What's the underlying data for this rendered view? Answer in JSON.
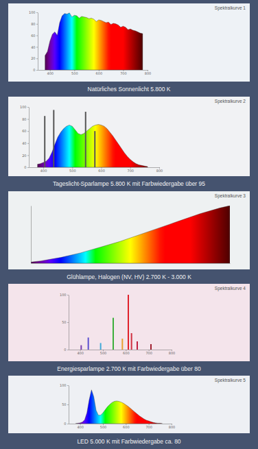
{
  "chart_data": [
    {
      "type": "area",
      "title": "Natürliches Sonnenlicht 5.800 K",
      "subtitle": "Spektralkurve 1",
      "x": [
        380,
        390,
        400,
        410,
        420,
        430,
        440,
        450,
        460,
        470,
        480,
        490,
        500,
        510,
        520,
        530,
        540,
        550,
        560,
        570,
        580,
        590,
        600,
        610,
        620,
        630,
        640,
        650,
        660,
        670,
        680,
        690,
        700,
        710,
        720,
        730,
        740,
        750,
        760,
        770,
        780
      ],
      "values": [
        25,
        32,
        50,
        62,
        66,
        60,
        82,
        94,
        98,
        97,
        99,
        92,
        95,
        94,
        90,
        93,
        92,
        91,
        89,
        90,
        88,
        84,
        87,
        86,
        84,
        82,
        83,
        79,
        81,
        80,
        78,
        74,
        76,
        74,
        70,
        71,
        69,
        68,
        66,
        64,
        63
      ],
      "xlim": [
        350,
        800
      ],
      "ylim": [
        0,
        100
      ],
      "xticks": [
        400,
        500,
        600,
        700,
        800
      ],
      "yticks": [
        0,
        20,
        40,
        60,
        80,
        100
      ]
    },
    {
      "type": "area",
      "title": "Tageslicht-Sparlampe 5.800 K mit Farbwiedergabe über 95",
      "subtitle": "Spektralkurve 2",
      "series": [
        {
          "type": "area",
          "x": [
            380,
            390,
            400,
            410,
            420,
            430,
            440,
            450,
            460,
            470,
            480,
            490,
            500,
            510,
            520,
            530,
            540,
            550,
            560,
            570,
            580,
            590,
            600,
            610,
            620,
            630,
            640,
            650,
            660,
            670,
            680,
            690,
            700,
            710,
            720,
            730,
            740,
            750,
            760
          ],
          "values": [
            5,
            6,
            8,
            10,
            15,
            25,
            38,
            50,
            58,
            64,
            68,
            70,
            68,
            62,
            56,
            54,
            56,
            60,
            64,
            68,
            70,
            71,
            70,
            68,
            64,
            58,
            52,
            45,
            38,
            31,
            24,
            18,
            13,
            9,
            6,
            4,
            3,
            2,
            1
          ]
        },
        {
          "type": "bar",
          "color": "#555555",
          "x": [
            405,
            436,
            546,
            578
          ],
          "values": [
            85,
            95,
            92,
            60
          ]
        }
      ],
      "xlim": [
        350,
        800
      ],
      "ylim": [
        0,
        100
      ],
      "xticks": [
        400,
        500,
        600,
        700,
        800
      ],
      "yticks": [
        0,
        20,
        40,
        60,
        80,
        100
      ]
    },
    {
      "type": "area",
      "title": "Glühlampe, Halogen (NV, HV) 2.700 K - 3.000 K",
      "subtitle": "Spektralkurve 3",
      "x": [
        380,
        400,
        420,
        440,
        460,
        480,
        500,
        520,
        540,
        560,
        580,
        600,
        620,
        640,
        660,
        680,
        700,
        720,
        740,
        760,
        780
      ],
      "values": [
        2,
        4,
        7,
        10,
        14,
        18,
        23,
        28,
        33,
        38,
        44,
        50,
        56,
        62,
        68,
        74,
        80,
        86,
        91,
        96,
        100
      ],
      "xlim": [
        380,
        780
      ],
      "ylim": [
        0,
        100
      ],
      "tick_labels": false
    },
    {
      "type": "bar",
      "title": "Energiesparlampe 2.700 K mit Farbwiedergabe über 80",
      "subtitle": "Spektralkurve 4",
      "x": [
        405,
        436,
        490,
        545,
        585,
        611,
        625,
        650,
        710
      ],
      "values": [
        8,
        22,
        12,
        58,
        20,
        100,
        30,
        15,
        10
      ],
      "colors": [
        "#7a3fb0",
        "#5b4fd0",
        "#3fa9d8",
        "#3cae3c",
        "#e8a030",
        "#e0202a",
        "#d03040",
        "#c02040",
        "#a02030"
      ],
      "xlim": [
        350,
        800
      ],
      "ylim": [
        0,
        100
      ],
      "xticks": [
        400,
        500,
        600,
        700,
        800
      ],
      "yticks": [
        0,
        50,
        100
      ]
    },
    {
      "type": "area",
      "title": "LED 5.000 K mit Farbwiedergabe ca. 80",
      "subtitle": "Spektralkurve 5",
      "x": [
        380,
        390,
        400,
        410,
        420,
        430,
        440,
        450,
        460,
        470,
        480,
        490,
        500,
        510,
        520,
        530,
        540,
        550,
        560,
        570,
        580,
        590,
        600,
        610,
        620,
        630,
        640,
        650,
        660,
        670,
        680,
        690,
        700,
        710,
        720,
        730,
        740,
        750,
        760
      ],
      "values": [
        0,
        1,
        2,
        4,
        10,
        28,
        62,
        88,
        70,
        35,
        22,
        22,
        28,
        36,
        44,
        50,
        55,
        58,
        59,
        58,
        56,
        53,
        49,
        45,
        40,
        35,
        30,
        25,
        20,
        16,
        12,
        9,
        7,
        5,
        3,
        2,
        1,
        1,
        0
      ],
      "xlim": [
        350,
        800
      ],
      "ylim": [
        0,
        100
      ],
      "xticks": [
        400,
        500,
        600,
        700,
        800
      ],
      "yticks": [
        0,
        50,
        100
      ]
    }
  ]
}
